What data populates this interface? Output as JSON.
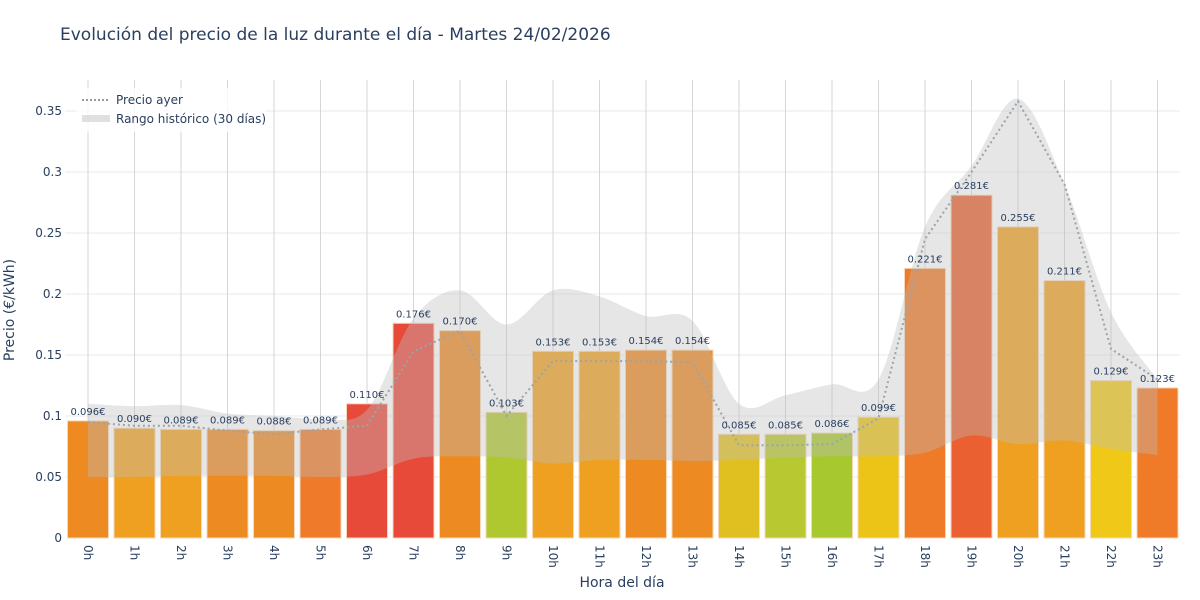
{
  "chart_data": {
    "type": "bar",
    "title": "Evolución del precio de la luz durante el día - Martes 24/02/2026",
    "xlabel": "Hora del día",
    "ylabel": "Precio (€/kWh)",
    "ylim": [
      0,
      0.375
    ],
    "yticks": [
      0,
      0.05,
      0.1,
      0.15,
      0.2,
      0.25,
      0.3,
      0.35
    ],
    "ytick_labels": [
      "0",
      "0.05",
      "0.1",
      "0.15",
      "0.2",
      "0.25",
      "0.3",
      "0.35"
    ],
    "grid": true,
    "legend_position": "top-left",
    "categories": [
      "0h",
      "1h",
      "2h",
      "3h",
      "4h",
      "5h",
      "6h",
      "7h",
      "8h",
      "9h",
      "10h",
      "11h",
      "12h",
      "13h",
      "14h",
      "15h",
      "16h",
      "17h",
      "18h",
      "19h",
      "20h",
      "21h",
      "22h",
      "23h"
    ],
    "values": [
      0.096,
      0.09,
      0.089,
      0.089,
      0.088,
      0.089,
      0.11,
      0.176,
      0.17,
      0.103,
      0.153,
      0.153,
      0.154,
      0.154,
      0.085,
      0.085,
      0.086,
      0.099,
      0.221,
      0.281,
      0.255,
      0.211,
      0.129,
      0.123
    ],
    "value_labels": [
      "0.096€",
      "0.090€",
      "0.089€",
      "0.089€",
      "0.088€",
      "0.089€",
      "0.110€",
      "0.176€",
      "0.170€",
      "0.103€",
      "0.153€",
      "0.153€",
      "0.154€",
      "0.154€",
      "0.085€",
      "0.085€",
      "0.086€",
      "0.099€",
      "0.221€",
      "0.281€",
      "0.255€",
      "0.211€",
      "0.129€",
      "0.123€"
    ],
    "bar_colors": [
      "#ee8a22",
      "#efa020",
      "#efa020",
      "#ee8a22",
      "#ee8a22",
      "#ee7a2a",
      "#e84a3a",
      "#e84a3a",
      "#ee8a22",
      "#b0c830",
      "#efa020",
      "#efa020",
      "#ee8a22",
      "#ee8a22",
      "#e0c020",
      "#b8c830",
      "#a8c830",
      "#ecc418",
      "#ef7a28",
      "#ea6030",
      "#efa020",
      "#efa020",
      "#f0c818",
      "#ef7a28"
    ],
    "series": [
      {
        "name": "Precio ayer",
        "type": "line",
        "color": "#999999",
        "values": [
          0.095,
          0.092,
          0.092,
          0.088,
          0.085,
          0.089,
          0.092,
          0.153,
          0.17,
          0.1,
          0.145,
          0.145,
          0.145,
          0.144,
          0.076,
          0.076,
          0.077,
          0.098,
          0.245,
          0.3,
          0.358,
          0.29,
          0.155,
          0.13
        ]
      },
      {
        "name": "Rango histórico (30 días)",
        "type": "band",
        "color": "#cccccc",
        "upper": [
          0.11,
          0.108,
          0.109,
          0.102,
          0.1,
          0.098,
          0.105,
          0.18,
          0.203,
          0.175,
          0.203,
          0.198,
          0.182,
          0.178,
          0.11,
          0.117,
          0.126,
          0.13,
          0.255,
          0.305,
          0.36,
          0.29,
          0.185,
          0.13
        ],
        "lower": [
          0.05,
          0.05,
          0.051,
          0.051,
          0.051,
          0.05,
          0.052,
          0.065,
          0.067,
          0.066,
          0.061,
          0.064,
          0.064,
          0.063,
          0.064,
          0.066,
          0.067,
          0.067,
          0.07,
          0.084,
          0.077,
          0.08,
          0.073,
          0.068
        ]
      }
    ]
  }
}
